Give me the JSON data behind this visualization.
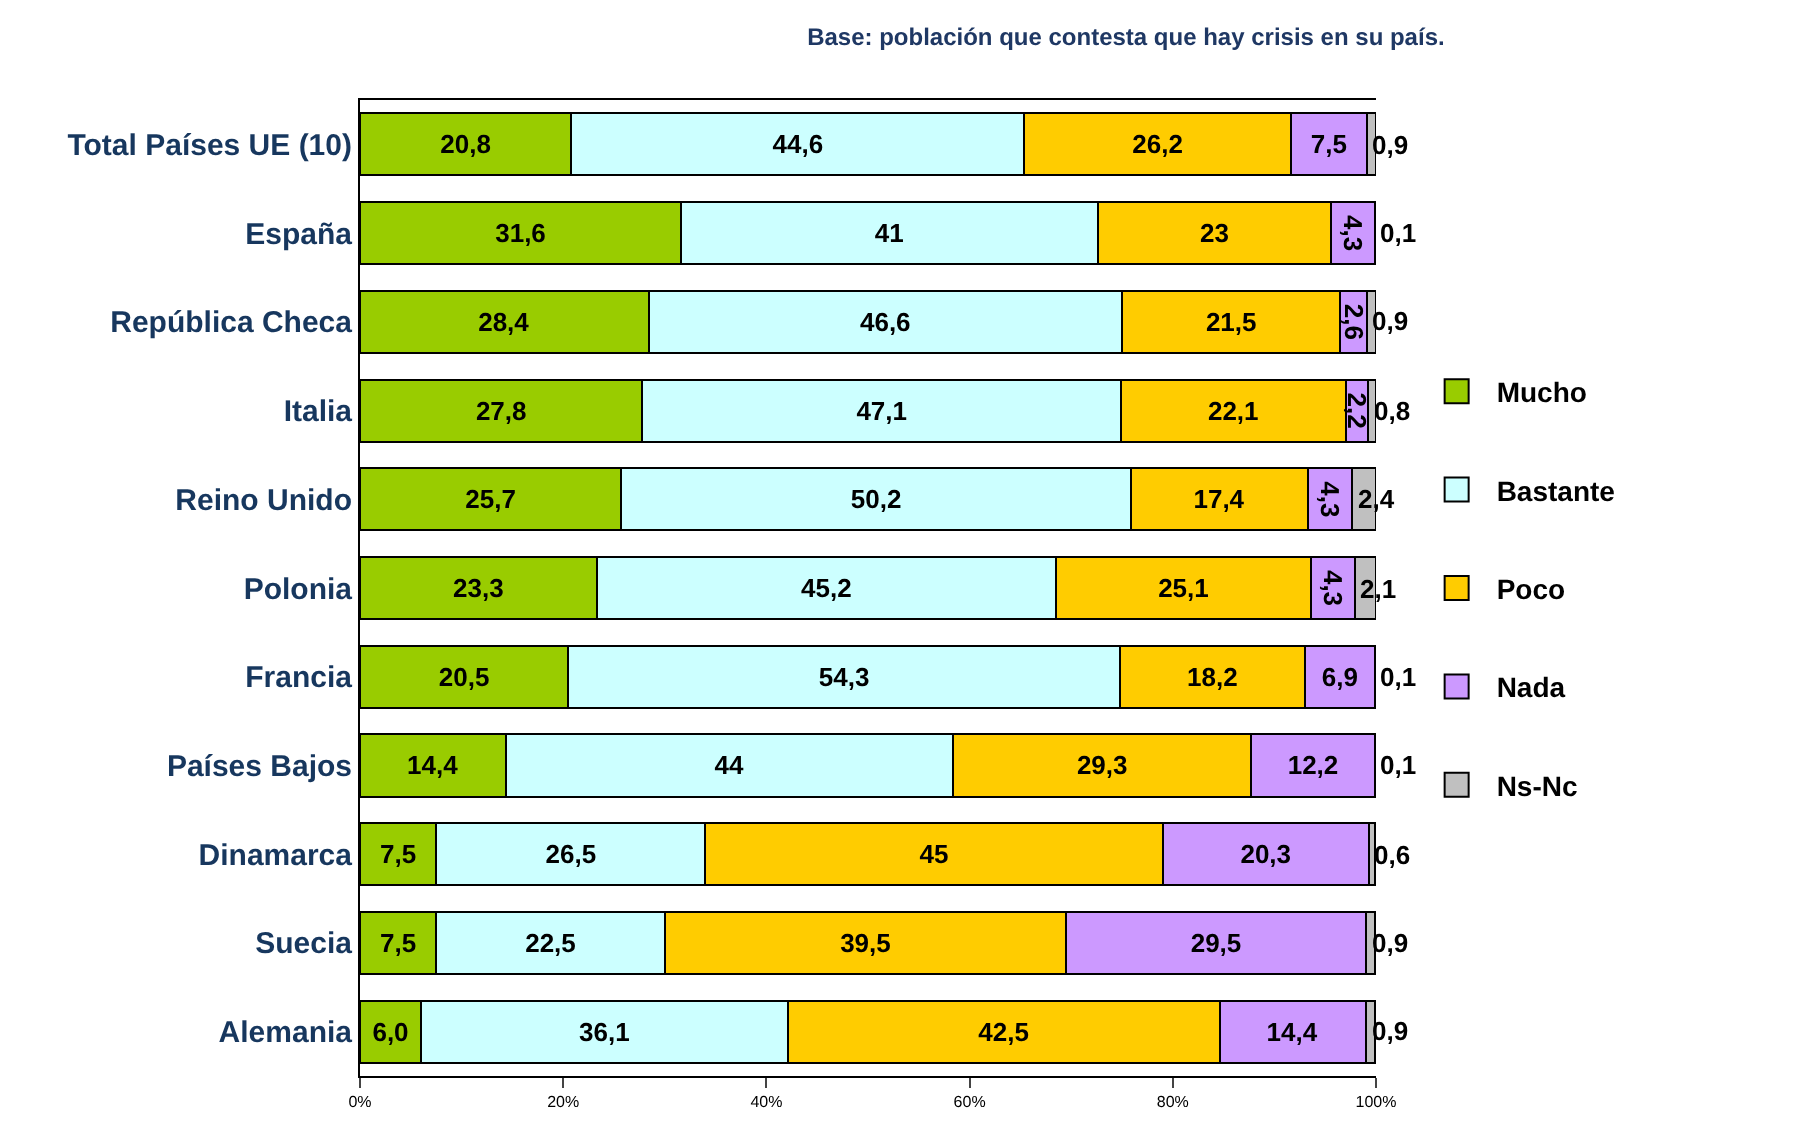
{
  "chart_data": {
    "type": "bar",
    "orientation": "horizontal",
    "stacked": true,
    "title": "Base: población que contesta que hay crisis en su país.",
    "categories": [
      "Total Países UE (10)",
      "España",
      "República Checa",
      "Italia",
      "Reino Unido",
      "Polonia",
      "Francia",
      "Países Bajos",
      "Dinamarca",
      "Suecia",
      "Alemania"
    ],
    "series": [
      {
        "name": "Mucho",
        "color": "#99cc00",
        "values": [
          20.8,
          31.6,
          28.4,
          27.8,
          25.7,
          23.3,
          20.5,
          14.4,
          7.5,
          7.5,
          6.0
        ],
        "value_labels": [
          "20,8",
          "31,6",
          "28,4",
          "27,8",
          "25,7",
          "23,3",
          "20,5",
          "14,4",
          "7,5",
          "7,5",
          "6,0"
        ]
      },
      {
        "name": "Bastante",
        "color": "#ccffff",
        "values": [
          44.6,
          41,
          46.6,
          47.1,
          50.2,
          45.2,
          54.3,
          44,
          26.5,
          22.5,
          36.1
        ],
        "value_labels": [
          "44,6",
          "41",
          "46,6",
          "47,1",
          "50,2",
          "45,2",
          "54,3",
          "44",
          "26,5",
          "22,5",
          "36,1"
        ]
      },
      {
        "name": "Poco",
        "color": "#ffcc00",
        "values": [
          26.2,
          23,
          21.5,
          22.1,
          17.4,
          25.1,
          18.2,
          29.3,
          45,
          39.5,
          42.5
        ],
        "value_labels": [
          "26,2",
          "23",
          "21,5",
          "22,1",
          "17,4",
          "25,1",
          "18,2",
          "29,3",
          "45",
          "39,5",
          "42,5"
        ]
      },
      {
        "name": "Nada",
        "color": "#cc99ff",
        "values": [
          7.5,
          4.3,
          2.6,
          2.2,
          4.3,
          4.3,
          6.9,
          12.2,
          20.3,
          29.5,
          14.4
        ],
        "value_labels": [
          "7,5",
          "4,3",
          "2,6",
          "2,2",
          "4,3",
          "4,3",
          "6,9",
          "12,2",
          "20,3",
          "29,5",
          "14,4"
        ]
      },
      {
        "name": "Ns-Nc",
        "color": "#c0c0c0",
        "values": [
          0.9,
          0.1,
          0.9,
          0.8,
          2.4,
          2.1,
          0.1,
          0.1,
          0.6,
          0.9,
          0.9
        ],
        "value_labels": [
          "0,9",
          "0,1",
          "0,9",
          "0,8",
          "2,4",
          "2,1",
          "0,1",
          "0,1",
          "0,6",
          "0,9",
          "0,9"
        ]
      }
    ],
    "xlim": [
      0,
      100
    ],
    "xticks": [
      {
        "value": 0,
        "label": "0%"
      },
      {
        "value": 20,
        "label": "20%"
      },
      {
        "value": 40,
        "label": "40%"
      },
      {
        "value": 60,
        "label": "60%"
      },
      {
        "value": 80,
        "label": "80%"
      },
      {
        "value": 100,
        "label": "100%"
      }
    ],
    "legend": "right"
  }
}
